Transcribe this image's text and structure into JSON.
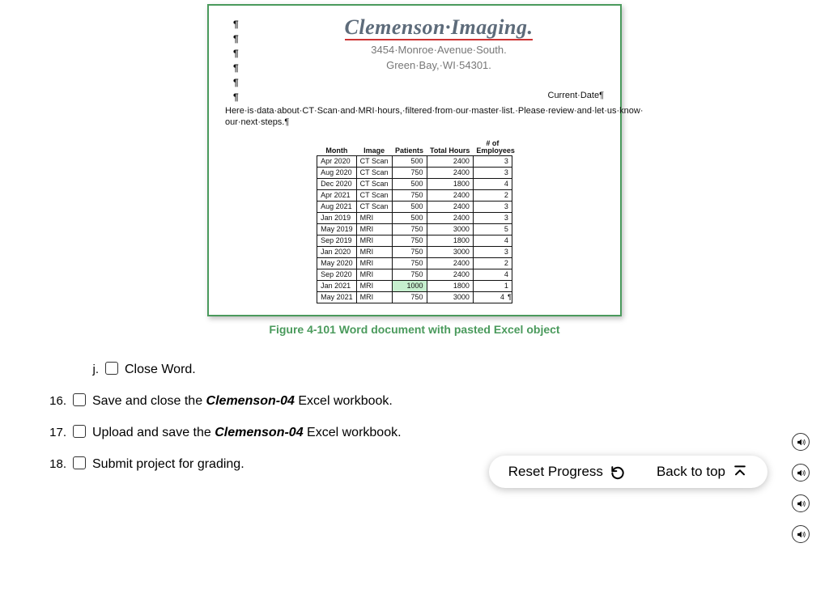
{
  "document": {
    "title": "Clemenson·Imaging.",
    "address_line1": "3454·Monroe·Avenue·South.",
    "address_line2": "Green·Bay,·WI·54301.",
    "date_label": "Current·Date¶",
    "body_text": "Here·is·data·about·CT·Scan·and·MRI·hours,·filtered·from·our·master·list.·Please·review·and·let·us·know· our·next·steps.¶",
    "pilcrows": [
      "¶",
      "¶",
      "¶",
      "¶",
      "¶",
      "¶"
    ],
    "table": {
      "headers": [
        "Month",
        "Image",
        "Patients",
        "Total Hours",
        "# of Employees"
      ],
      "rows": [
        [
          "Apr 2020",
          "CT Scan",
          "500",
          "2400",
          "3"
        ],
        [
          "Aug 2020",
          "CT Scan",
          "750",
          "2400",
          "3"
        ],
        [
          "Dec 2020",
          "CT Scan",
          "500",
          "1800",
          "4"
        ],
        [
          "Apr 2021",
          "CT Scan",
          "750",
          "2400",
          "2"
        ],
        [
          "Aug 2021",
          "CT Scan",
          "500",
          "2400",
          "3"
        ],
        [
          "Jan 2019",
          "MRI",
          "500",
          "2400",
          "3"
        ],
        [
          "May 2019",
          "MRI",
          "750",
          "3000",
          "5"
        ],
        [
          "Sep 2019",
          "MRI",
          "750",
          "1800",
          "4"
        ],
        [
          "Jan 2020",
          "MRI",
          "750",
          "3000",
          "3"
        ],
        [
          "May 2020",
          "MRI",
          "750",
          "2400",
          "2"
        ],
        [
          "Sep 2020",
          "MRI",
          "750",
          "2400",
          "4"
        ],
        [
          "Jan 2021",
          "MRI",
          "1000",
          "1800",
          "1"
        ],
        [
          "May 2021",
          "MRI",
          "750",
          "3000",
          "4"
        ]
      ],
      "highlight_cell": {
        "row": 11,
        "col": 2
      },
      "trailing_mark": "¶"
    }
  },
  "figure_caption": "Figure 4-101 Word document with pasted Excel object",
  "tasks": {
    "sub": {
      "marker": "j.",
      "text": "Close Word."
    },
    "items": [
      {
        "marker": "16.",
        "prefix": "Save and close the ",
        "strong": "Clemenson-04",
        "suffix": " Excel workbook."
      },
      {
        "marker": "17.",
        "prefix": "Upload and save the ",
        "strong": "Clemenson-04",
        "suffix": " Excel workbook."
      },
      {
        "marker": "18.",
        "prefix": "Submit project for grading.",
        "strong": "",
        "suffix": ""
      }
    ]
  },
  "floater": {
    "reset_label": "Reset Progress",
    "back_label": "Back to top"
  },
  "colors": {
    "accent": "#4a9a5c",
    "title_gray": "#5d6b7a",
    "underline_red": "#c33",
    "highlight_green": "#c6efce"
  }
}
